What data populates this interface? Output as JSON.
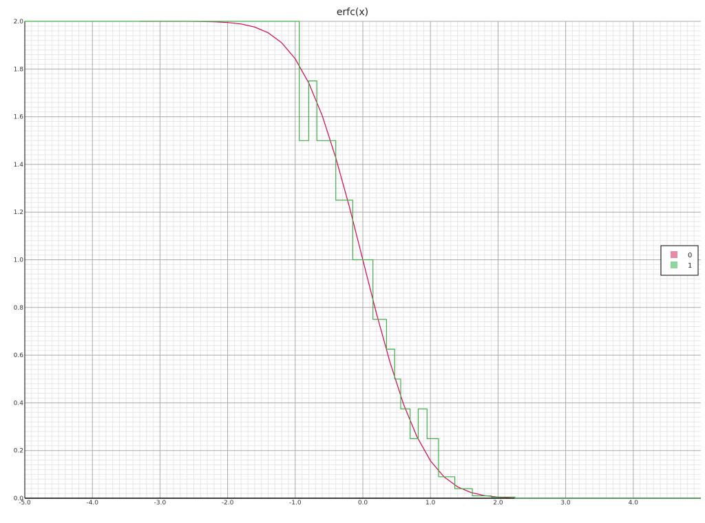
{
  "chart_data": {
    "type": "line",
    "title": "erfc(x)",
    "xlabel": "",
    "ylabel": "",
    "xlim": [
      -5.0,
      5.0
    ],
    "ylim": [
      0.0,
      2.0
    ],
    "x_ticks": [
      "-5.0",
      "-4.0",
      "-3.0",
      "-2.0",
      "-1.0",
      "0.0",
      "1.0",
      "2.0",
      "3.0",
      "4.0"
    ],
    "y_ticks": [
      "0.0",
      "0.2",
      "0.4",
      "0.6",
      "0.8",
      "1.0",
      "1.2",
      "1.4",
      "1.6",
      "1.8",
      "2.0"
    ],
    "grid": true,
    "legend_position": "right",
    "series": [
      {
        "name": "0",
        "kind": "line",
        "color": "#d6004f",
        "x": [
          -3.3,
          -3.0,
          -2.6,
          -2.4,
          -2.2,
          -2.0,
          -1.8,
          -1.6,
          -1.4,
          -1.2,
          -1.0,
          -0.8,
          -0.6,
          -0.4,
          -0.2,
          0.0,
          0.2,
          0.4,
          0.6,
          0.8,
          1.0,
          1.2,
          1.4,
          1.6,
          1.8,
          2.0,
          2.2
        ],
        "y": [
          2.0,
          2.0,
          2.0,
          1.999,
          1.998,
          1.995,
          1.989,
          1.976,
          1.952,
          1.91,
          1.843,
          1.742,
          1.604,
          1.428,
          1.223,
          1.0,
          0.777,
          0.572,
          0.396,
          0.258,
          0.157,
          0.09,
          0.048,
          0.024,
          0.011,
          0.005,
          0.002
        ]
      },
      {
        "name": "1",
        "kind": "step",
        "color": "#3cb043",
        "x": [
          -5.0,
          -0.94,
          -0.94,
          -0.8,
          -0.8,
          -0.68,
          -0.68,
          -0.4,
          -0.4,
          -0.15,
          -0.15,
          0.15,
          0.15,
          0.35,
          0.35,
          0.47,
          0.47,
          0.56,
          0.56,
          0.7,
          0.7,
          0.82,
          0.82,
          0.95,
          0.95,
          1.12,
          1.12,
          1.36,
          1.36,
          1.62,
          1.62,
          1.9,
          1.9,
          2.25,
          2.25,
          5.0
        ],
        "y": [
          2.0,
          2.0,
          1.5,
          1.5,
          1.75,
          1.75,
          1.5,
          1.5,
          1.25,
          1.25,
          1.0,
          1.0,
          0.75,
          0.75,
          0.625,
          0.625,
          0.5,
          0.5,
          0.375,
          0.375,
          0.25,
          0.25,
          0.375,
          0.375,
          0.25,
          0.25,
          0.09,
          0.09,
          0.04,
          0.04,
          0.01,
          0.01,
          0.005,
          0.005,
          0.0,
          0.0
        ]
      }
    ]
  },
  "legend": {
    "items": [
      {
        "label": "0",
        "swatch": "#e88aa4"
      },
      {
        "label": "1",
        "swatch": "#8fd49a"
      }
    ]
  }
}
